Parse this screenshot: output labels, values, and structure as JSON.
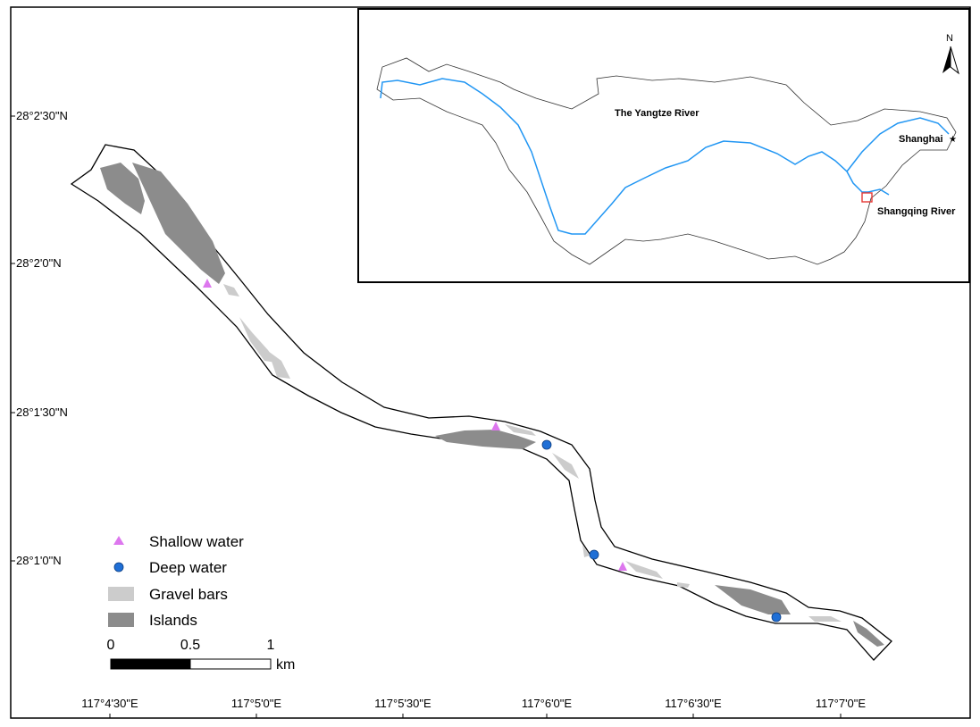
{
  "map": {
    "y_ticks": [
      "28°2'30\"N",
      "28°2'0\"N",
      "28°1'30\"N",
      "28°1'0\"N"
    ],
    "x_ticks": [
      "117°4'30\"E",
      "117°5'0\"E",
      "117°5'30\"E",
      "117°6'0\"E",
      "117°6'30\"E",
      "117°7'0\"E"
    ]
  },
  "legend": {
    "shallow": "Shallow water",
    "deep": "Deep water",
    "gravel": "Gravel bars",
    "islands": "Islands"
  },
  "scale_bar": {
    "t0": "0",
    "t1": "0.5",
    "t2": "1",
    "unit": "km"
  },
  "inset": {
    "north": "N",
    "river_label": "The Yangtze River",
    "city_label": "Shanghai",
    "site_label": "Shangqing River"
  },
  "colors": {
    "shallow": "#dd77ee",
    "deep": "#1f6fd6",
    "gravel": "#cccccc",
    "islands": "#8c8c8c",
    "yangtze": "#2196f3",
    "site_box": "#e53935"
  }
}
